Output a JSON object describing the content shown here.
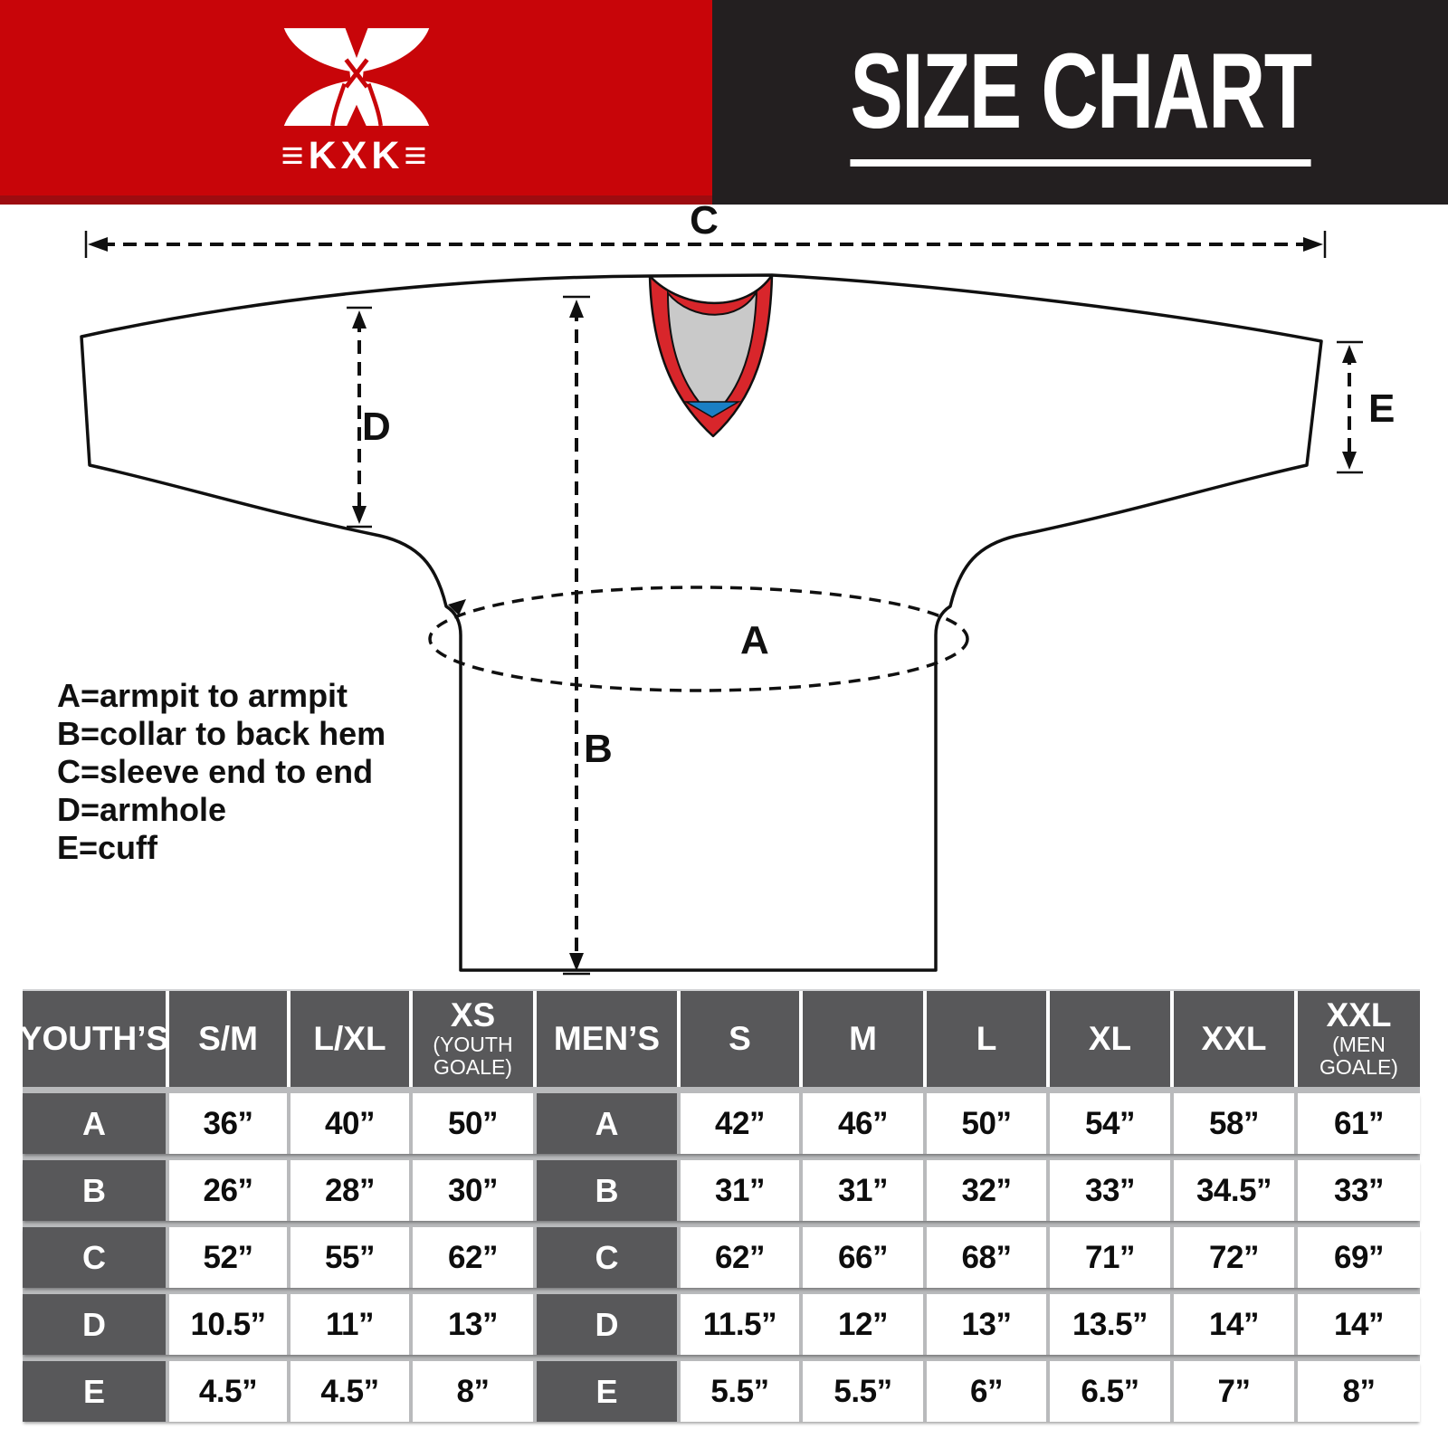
{
  "header": {
    "logo_text": "≡KXK≡",
    "title": "SIZE CHART",
    "colors": {
      "red": "#c80509",
      "red_dark": "#9d0c10",
      "dark": "#231f20"
    }
  },
  "diagram": {
    "measure_labels": {
      "A": "A",
      "B": "B",
      "C": "C",
      "D": "D",
      "E": "E"
    },
    "legend_lines": [
      "A=armpit to armpit",
      "B=collar to back hem",
      "C=sleeve end to end",
      "D=armhole",
      "E=cuff"
    ],
    "colors": {
      "collar_red": "#d8262b",
      "collar_gray": "#c9c9c9",
      "collar_blue": "#1a7fc4",
      "outline": "#101010"
    }
  },
  "table": {
    "youth_header": {
      "label": "YOUTH’S"
    },
    "youth_sizes": [
      {
        "label": "S/M"
      },
      {
        "label": "L/XL"
      },
      {
        "label": "XS",
        "sub": "(YOUTH GOALE)"
      }
    ],
    "mens_header": {
      "label": "MEN’S"
    },
    "mens_sizes": [
      {
        "label": "S"
      },
      {
        "label": "M"
      },
      {
        "label": "L"
      },
      {
        "label": "XL"
      },
      {
        "label": "XXL"
      },
      {
        "label": "XXL",
        "sub": "(MEN GOALE)"
      }
    ],
    "rows": [
      {
        "label": "A",
        "youth": [
          "36”",
          "40”",
          "50”"
        ],
        "mens": [
          "42”",
          "46”",
          "50”",
          "54”",
          "58”",
          "61”"
        ]
      },
      {
        "label": "B",
        "youth": [
          "26”",
          "28”",
          "30”"
        ],
        "mens": [
          "31”",
          "31”",
          "32”",
          "33”",
          "34.5”",
          "33”"
        ]
      },
      {
        "label": "C",
        "youth": [
          "52”",
          "55”",
          "62”"
        ],
        "mens": [
          "62”",
          "66”",
          "68”",
          "71”",
          "72”",
          "69”"
        ]
      },
      {
        "label": "D",
        "youth": [
          "10.5”",
          "11”",
          "13”"
        ],
        "mens": [
          "11.5”",
          "12”",
          "13”",
          "13.5”",
          "14”",
          "14”"
        ]
      },
      {
        "label": "E",
        "youth": [
          "4.5”",
          "4.5”",
          "8”"
        ],
        "mens": [
          "5.5”",
          "5.5”",
          "6”",
          "6.5”",
          "7”",
          "8”"
        ]
      }
    ]
  },
  "chart_data": {
    "type": "table",
    "title": "SIZE CHART",
    "measurement_legend": {
      "A": "armpit to armpit",
      "B": "collar to back hem",
      "C": "sleeve end to end",
      "D": "armhole",
      "E": "cuff"
    },
    "youth": {
      "columns": [
        "S/M",
        "L/XL",
        "XS (YOUTH GOALE)"
      ],
      "rows": {
        "A": [
          "36”",
          "40”",
          "50”"
        ],
        "B": [
          "26”",
          "28”",
          "30”"
        ],
        "C": [
          "52”",
          "55”",
          "62”"
        ],
        "D": [
          "10.5”",
          "11”",
          "13”"
        ],
        "E": [
          "4.5”",
          "4.5”",
          "8”"
        ]
      }
    },
    "mens": {
      "columns": [
        "S",
        "M",
        "L",
        "XL",
        "XXL",
        "XXL (MEN GOALE)"
      ],
      "rows": {
        "A": [
          "42”",
          "46”",
          "50”",
          "54”",
          "58”",
          "61”"
        ],
        "B": [
          "31”",
          "31”",
          "32”",
          "33”",
          "34.5”",
          "33”"
        ],
        "C": [
          "62”",
          "66”",
          "68”",
          "71”",
          "72”",
          "69”"
        ],
        "D": [
          "11.5”",
          "12”",
          "13”",
          "13.5”",
          "14”",
          "14”"
        ],
        "E": [
          "5.5”",
          "5.5”",
          "6”",
          "6.5”",
          "7”",
          "8”"
        ]
      }
    }
  }
}
